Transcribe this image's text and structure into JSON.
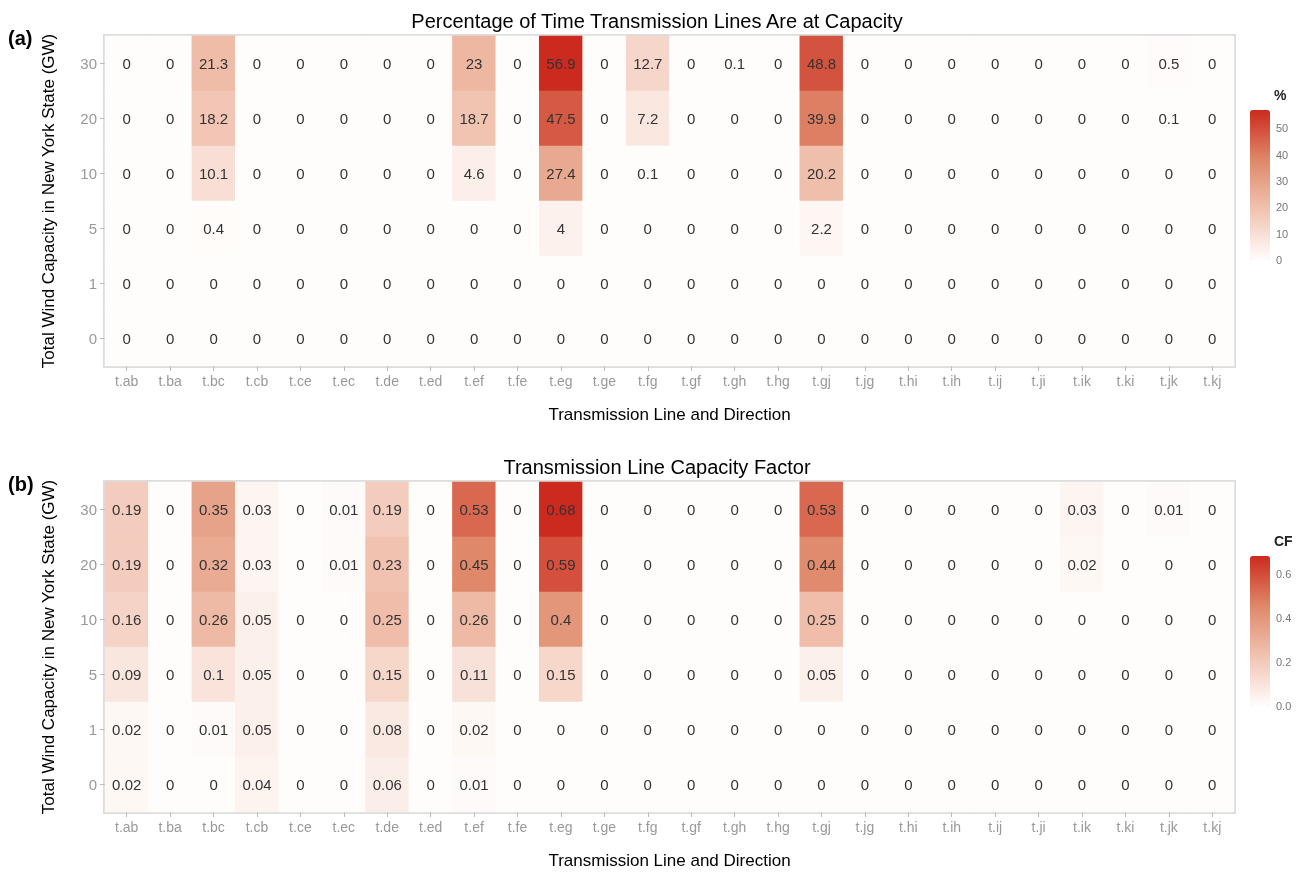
{
  "chart_data": [
    {
      "type": "heatmap",
      "title": "Percentage of Time Transmission Lines Are at Capacity",
      "xlabel": "Transmission Line and Direction",
      "ylabel": "Total Wind Capacity in New York State (GW)",
      "clabel": "%",
      "annotations": [
        "(a)"
      ],
      "categories": [
        "t.ab",
        "t.ba",
        "t.bc",
        "t.cb",
        "t.ce",
        "t.ec",
        "t.de",
        "t.ed",
        "t.ef",
        "t.fe",
        "t.eg",
        "t.ge",
        "t.fg",
        "t.gf",
        "t.gh",
        "t.hg",
        "t.gj",
        "t.jg",
        "t.hi",
        "t.ih",
        "t.ij",
        "t.ji",
        "t.ik",
        "t.ki",
        "t.jk",
        "t.kj"
      ],
      "y_categories": [
        "30",
        "20",
        "10",
        "5",
        "1",
        "0"
      ],
      "cells": [
        [
          0,
          0,
          21.3,
          0,
          0,
          0,
          0,
          0,
          23,
          0,
          56.9,
          0,
          12.7,
          0,
          0.1,
          0,
          48.8,
          0,
          0,
          0,
          0,
          0,
          0,
          0,
          0.5,
          0
        ],
        [
          0,
          0,
          18.2,
          0,
          0,
          0,
          0,
          0,
          18.7,
          0,
          47.5,
          0,
          7.2,
          0,
          0,
          0,
          39.9,
          0,
          0,
          0,
          0,
          0,
          0,
          0,
          0.1,
          0
        ],
        [
          0,
          0,
          10.1,
          0,
          0,
          0,
          0,
          0,
          4.6,
          0,
          27.4,
          0,
          0.1,
          0,
          0,
          0,
          20.2,
          0,
          0,
          0,
          0,
          0,
          0,
          0,
          0,
          0
        ],
        [
          0,
          0,
          0.4,
          0,
          0,
          0,
          0,
          0,
          0,
          0,
          4,
          0,
          0,
          0,
          0,
          0,
          2.2,
          0,
          0,
          0,
          0,
          0,
          0,
          0,
          0,
          0
        ],
        [
          0,
          0,
          0,
          0,
          0,
          0,
          0,
          0,
          0,
          0,
          0,
          0,
          0,
          0,
          0,
          0,
          0,
          0,
          0,
          0,
          0,
          0,
          0,
          0,
          0,
          0
        ],
        [
          0,
          0,
          0,
          0,
          0,
          0,
          0,
          0,
          0,
          0,
          0,
          0,
          0,
          0,
          0,
          0,
          0,
          0,
          0,
          0,
          0,
          0,
          0,
          0,
          0,
          0
        ]
      ],
      "clim": [
        0,
        57
      ],
      "cticks": [
        0,
        10,
        20,
        30,
        40,
        50
      ],
      "data_labels": true
    },
    {
      "type": "heatmap",
      "title": "Transmission Line Capacity Factor",
      "xlabel": "Transmission Line and Direction",
      "ylabel": "Total Wind Capacity in New York State (GW)",
      "clabel": "CF",
      "annotations": [
        "(b)"
      ],
      "categories": [
        "t.ab",
        "t.ba",
        "t.bc",
        "t.cb",
        "t.ce",
        "t.ec",
        "t.de",
        "t.ed",
        "t.ef",
        "t.fe",
        "t.eg",
        "t.ge",
        "t.fg",
        "t.gf",
        "t.gh",
        "t.hg",
        "t.gj",
        "t.jg",
        "t.hi",
        "t.ih",
        "t.ij",
        "t.ji",
        "t.ik",
        "t.ki",
        "t.jk",
        "t.kj"
      ],
      "y_categories": [
        "30",
        "20",
        "10",
        "5",
        "1",
        "0"
      ],
      "cells": [
        [
          0.19,
          0,
          0.35,
          0.03,
          0,
          0.01,
          0.19,
          0,
          0.53,
          0,
          0.68,
          0,
          0,
          0,
          0,
          0,
          0.53,
          0,
          0,
          0,
          0,
          0,
          0.03,
          0,
          0.01,
          0
        ],
        [
          0.19,
          0,
          0.32,
          0.03,
          0,
          0.01,
          0.23,
          0,
          0.45,
          0,
          0.59,
          0,
          0,
          0,
          0,
          0,
          0.44,
          0,
          0,
          0,
          0,
          0,
          0.02,
          0,
          0,
          0
        ],
        [
          0.16,
          0,
          0.26,
          0.05,
          0,
          0,
          0.25,
          0,
          0.26,
          0,
          0.4,
          0,
          0,
          0,
          0,
          0,
          0.25,
          0,
          0,
          0,
          0,
          0,
          0,
          0,
          0,
          0
        ],
        [
          0.09,
          0,
          0.1,
          0.05,
          0,
          0,
          0.15,
          0,
          0.11,
          0,
          0.15,
          0,
          0,
          0,
          0,
          0,
          0.05,
          0,
          0,
          0,
          0,
          0,
          0,
          0,
          0,
          0
        ],
        [
          0.02,
          0,
          0.01,
          0.05,
          0,
          0,
          0.08,
          0,
          0.02,
          0,
          0,
          0,
          0,
          0,
          0,
          0,
          0,
          0,
          0,
          0,
          0,
          0,
          0,
          0,
          0,
          0
        ],
        [
          0.02,
          0,
          0,
          0.04,
          0,
          0,
          0.06,
          0,
          0.01,
          0,
          0,
          0,
          0,
          0,
          0,
          0,
          0,
          0,
          0,
          0,
          0,
          0,
          0,
          0,
          0,
          0
        ]
      ],
      "clim": [
        0,
        0.68
      ],
      "cticks": [
        {
          "value": 0,
          "label": "0.0"
        },
        0.2,
        0.4,
        0.6
      ],
      "data_labels": true
    }
  ]
}
